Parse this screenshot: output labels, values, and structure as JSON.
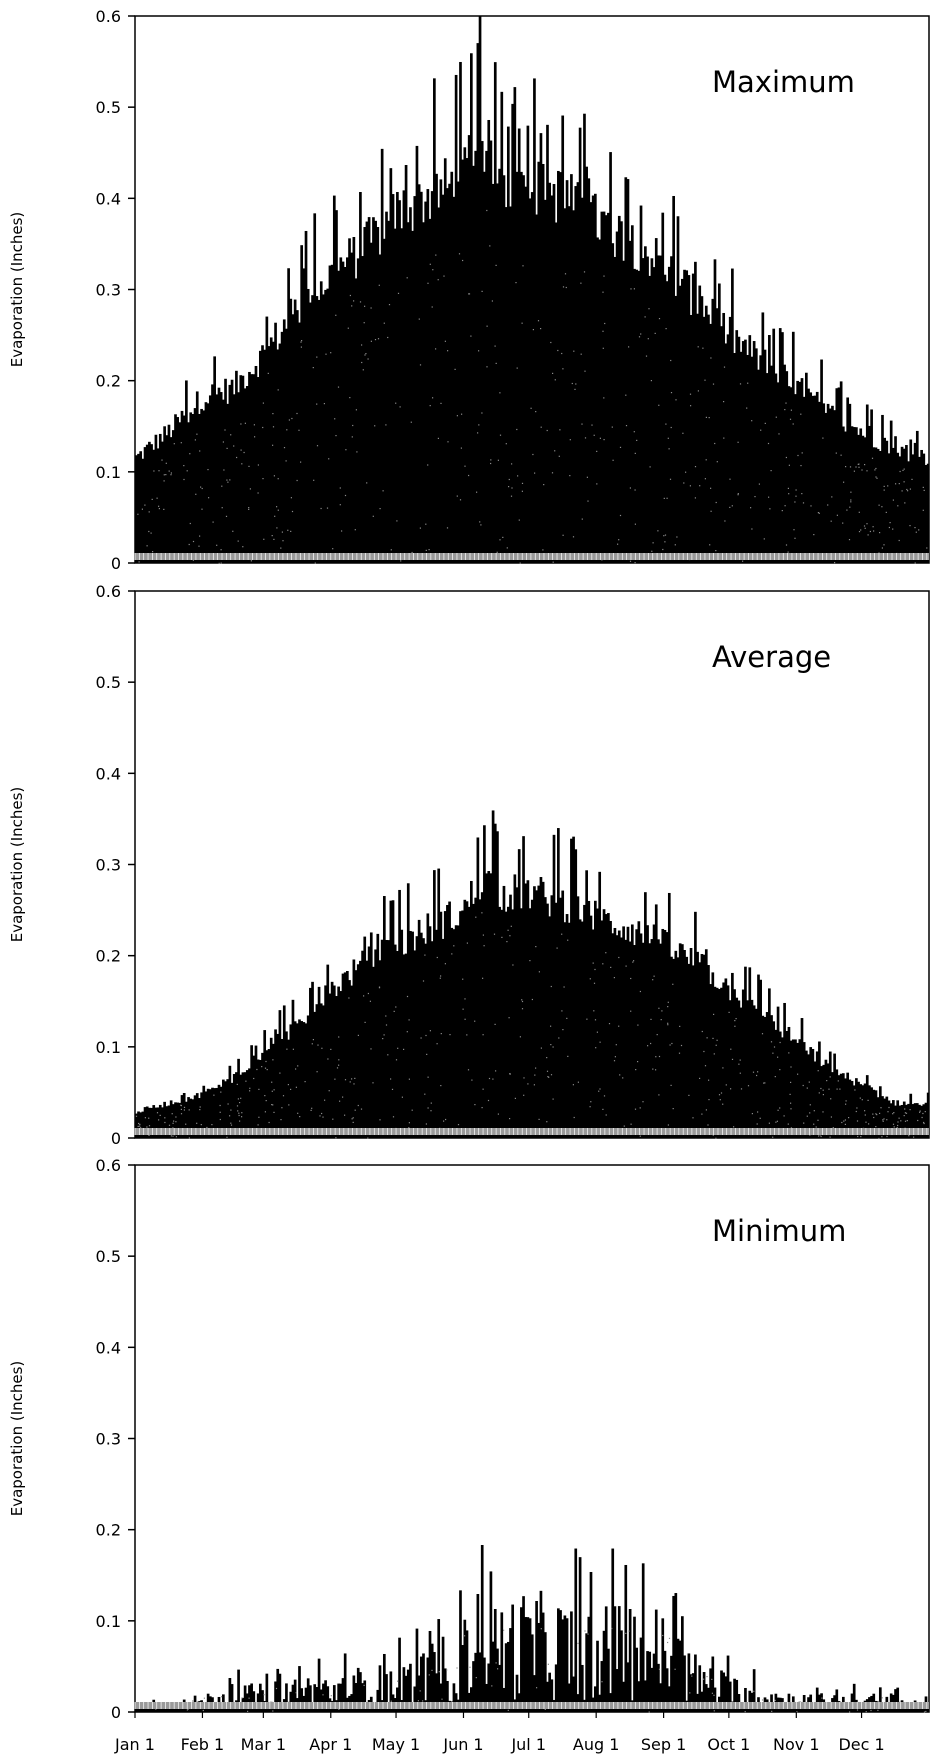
{
  "chart_data": [
    {
      "type": "bar",
      "title": "Maximum",
      "ylabel": "Evaporation (Inches)",
      "ylim": [
        0,
        0.6
      ],
      "yticks": [
        "0",
        "0.1",
        "0.2",
        "0.3",
        "0.4",
        "0.5",
        "0.6"
      ],
      "x_unit": "day",
      "x": [
        1,
        16,
        32,
        46,
        60,
        75,
        91,
        106,
        121,
        136,
        152,
        160,
        167,
        182,
        197,
        213,
        228,
        244,
        259,
        274,
        289,
        305,
        320,
        335,
        350,
        365
      ],
      "values": [
        0.12,
        0.15,
        0.19,
        0.2,
        0.24,
        0.29,
        0.33,
        0.36,
        0.4,
        0.42,
        0.44,
        0.49,
        0.44,
        0.43,
        0.42,
        0.39,
        0.37,
        0.34,
        0.3,
        0.26,
        0.23,
        0.2,
        0.17,
        0.15,
        0.13,
        0.12
      ]
    },
    {
      "type": "bar",
      "title": "Average",
      "ylabel": "Evaporation (Inches)",
      "ylim": [
        0,
        0.6
      ],
      "yticks": [
        "0",
        "0.1",
        "0.2",
        "0.3",
        "0.4",
        "0.5",
        "0.6"
      ],
      "x_unit": "day",
      "x": [
        1,
        16,
        32,
        46,
        60,
        75,
        91,
        106,
        121,
        136,
        152,
        160,
        167,
        182,
        197,
        213,
        228,
        244,
        259,
        274,
        289,
        305,
        320,
        335,
        350,
        365
      ],
      "values": [
        0.03,
        0.04,
        0.05,
        0.07,
        0.1,
        0.13,
        0.17,
        0.2,
        0.22,
        0.24,
        0.26,
        0.3,
        0.28,
        0.28,
        0.27,
        0.25,
        0.24,
        0.22,
        0.2,
        0.17,
        0.14,
        0.11,
        0.08,
        0.06,
        0.04,
        0.04
      ]
    },
    {
      "type": "bar",
      "title": "Minimum",
      "ylabel": "Evaporation (Inches)",
      "ylim": [
        0,
        0.6
      ],
      "yticks": [
        "0",
        "0.1",
        "0.2",
        "0.3",
        "0.4",
        "0.5",
        "0.6"
      ],
      "x_unit": "day",
      "x": [
        1,
        16,
        32,
        46,
        60,
        75,
        91,
        106,
        121,
        136,
        152,
        160,
        167,
        182,
        197,
        213,
        228,
        244,
        259,
        274,
        289,
        305,
        320,
        335,
        350,
        365
      ],
      "values": [
        0.01,
        0.01,
        0.02,
        0.03,
        0.03,
        0.04,
        0.04,
        0.05,
        0.05,
        0.07,
        0.1,
        0.2,
        0.12,
        0.13,
        0.12,
        0.11,
        0.12,
        0.11,
        0.06,
        0.04,
        0.03,
        0.02,
        0.02,
        0.02,
        0.02,
        0.01
      ],
      "xticks": [
        "Jan 1",
        "Feb 1",
        "Mar 1",
        "Apr 1",
        "May 1",
        "Jun 1",
        "Jul 1",
        "Aug 1",
        "Sep 1",
        "Oct 1",
        "Nov 1",
        "Dec 1"
      ]
    }
  ]
}
